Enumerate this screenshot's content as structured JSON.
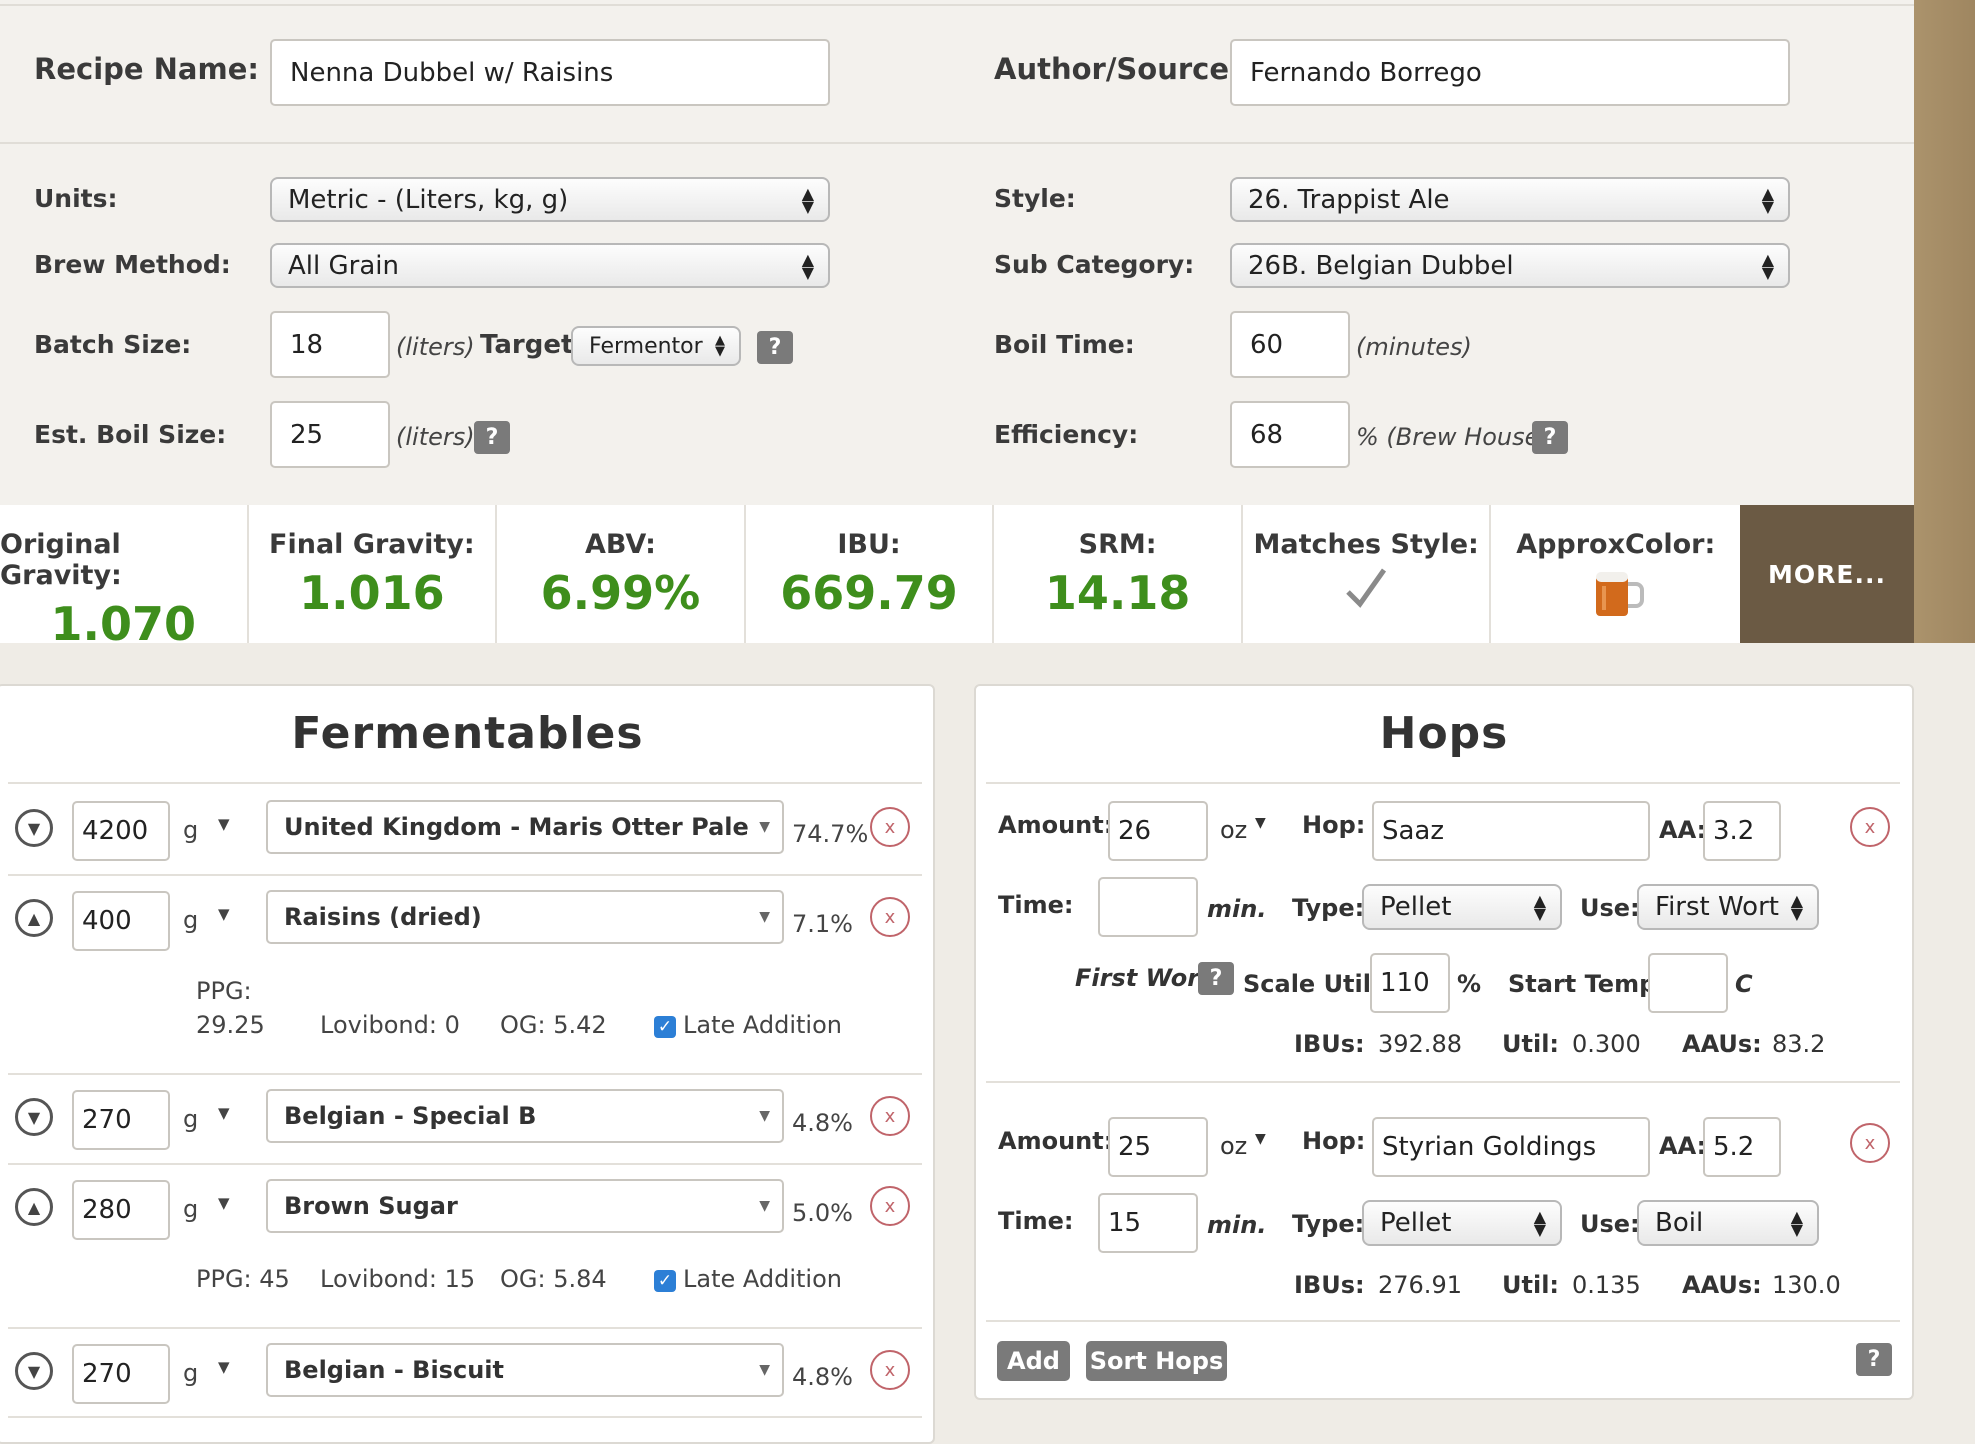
{
  "recipe": {
    "name_label": "Recipe Name:",
    "name_value": "Nenna Dubbel w/ Raisins",
    "author_label": "Author/Source:",
    "author_value": "Fernando Borrego"
  },
  "settings": {
    "units_label": "Units:",
    "units_value": "Metric - (Liters, kg, g)",
    "brew_method_label": "Brew Method:",
    "brew_method_value": "All Grain",
    "batch_size_label": "Batch Size:",
    "batch_size_value": "18",
    "batch_size_unit": "(liters)",
    "target_label": "Target:",
    "target_value": "Fermentor",
    "boil_size_label": "Est. Boil Size:",
    "boil_size_value": "25",
    "boil_size_unit": "(liters)",
    "style_label": "Style:",
    "style_value": "26. Trappist Ale",
    "subcat_label": "Sub Category:",
    "subcat_value": "26B. Belgian Dubbel",
    "boil_time_label": "Boil Time:",
    "boil_time_value": "60",
    "boil_time_unit": "(minutes)",
    "efficiency_label": "Efficiency:",
    "efficiency_value": "68",
    "efficiency_unit": "% (Brew House)",
    "help": "?"
  },
  "stats": [
    {
      "label": "Original Gravity:",
      "value": "1.070"
    },
    {
      "label": "Final Gravity:",
      "value": "1.016"
    },
    {
      "label": "ABV:",
      "value": "6.99%"
    },
    {
      "label": "IBU:",
      "value": "669.79"
    },
    {
      "label": "SRM:",
      "value": "14.18"
    },
    {
      "label": "Matches Style:",
      "value": ""
    },
    {
      "label": "ApproxColor:",
      "value": ""
    }
  ],
  "more_label": "MORE...",
  "colors": {
    "accent_green": "#3e8e1c",
    "more_bg": "#6b5a44",
    "remove_red": "#c0646a",
    "checkbox_blue": "#2c7fd6"
  },
  "fermentables": {
    "title": "Fermentables",
    "unit": "g",
    "rows": [
      {
        "amount": "4200",
        "name": "United Kingdom - Maris Otter Pale",
        "pct": "74.7%",
        "dir": "▼"
      },
      {
        "amount": "400",
        "name": "Raisins (dried)",
        "pct": "7.1%",
        "dir": "▲"
      },
      {
        "amount": "270",
        "name": "Belgian - Special B",
        "pct": "4.8%",
        "dir": "▼"
      },
      {
        "amount": "280",
        "name": "Brown Sugar",
        "pct": "5.0%",
        "dir": "▲"
      },
      {
        "amount": "270",
        "name": "Belgian - Biscuit",
        "pct": "4.8%",
        "dir": "▼"
      }
    ],
    "detail1": {
      "ppg_label": "PPG:",
      "ppg_value": "29.25",
      "lovibond": "Lovibond: 0",
      "og": "OG: 5.42",
      "late": "Late Addition"
    },
    "detail2": {
      "ppg": "PPG: 45",
      "lovibond": "Lovibond: 15",
      "og": "OG: 5.84",
      "late": "Late Addition"
    }
  },
  "hops": {
    "title": "Hops",
    "amount_label": "Amount:",
    "hop_label": "Hop:",
    "aa_label": "AA:",
    "time_label": "Time:",
    "min": "min.",
    "type_label": "Type:",
    "use_label": "Use:",
    "unit": "oz",
    "ibus_label": "IBUs:",
    "util_label": "Util:",
    "aaus_label": "AAUs:",
    "items": [
      {
        "amount": "26",
        "name": "Saaz",
        "aa": "3.2",
        "time": "",
        "type": "Pellet",
        "use": "First Wort",
        "ibus": "392.88",
        "util": "0.300",
        "aaus": "83.2"
      },
      {
        "amount": "25",
        "name": "Styrian Goldings",
        "aa": "5.2",
        "time": "15",
        "type": "Pellet",
        "use": "Boil",
        "ibus": "276.91",
        "util": "0.135",
        "aaus": "130.0"
      }
    ],
    "first_wort_label": "First Wort",
    "scale_util_label": "Scale Util.:",
    "scale_util_value": "110",
    "pct_sign": "%",
    "start_temp_label": "Start Temp:",
    "start_temp_unit": "C",
    "add_button": "Add",
    "sort_button": "Sort Hops"
  }
}
